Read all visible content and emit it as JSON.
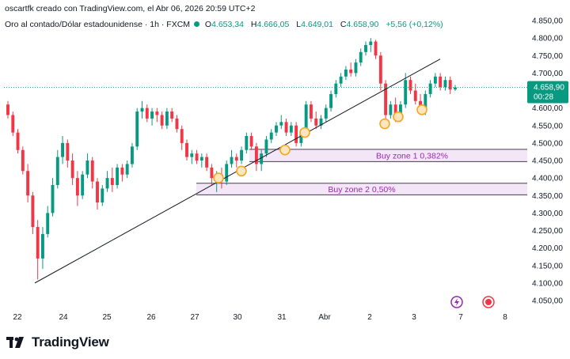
{
  "header": {
    "text": "oscartfk creado con TradingView.com, el Abr 06, 2026 20:59 UTC+2"
  },
  "legend": {
    "symbol": "Oro al contado/Dólar estadounidense · 1h · FXCM",
    "o_label": "O",
    "o_value": "4.653,34",
    "h_label": "H",
    "h_value": "4.666,05",
    "l_label": "L",
    "l_value": "4.649,01",
    "c_label": "C",
    "c_value": "4.658,90",
    "change": "+5,56 (+0,12%)"
  },
  "price_badge": {
    "price": "4.658,90",
    "countdown": "00:28"
  },
  "brand": {
    "name": "TradingView"
  },
  "colors": {
    "up": "#089981",
    "down": "#f23645",
    "trendline": "#131722",
    "zone_fill": "#f3e6f7",
    "zone_border": "#4a3a52",
    "zone_text": "#9c27b0",
    "marker": "#f5a623",
    "price_line": "#26a69a"
  },
  "chart_data": {
    "type": "candlestick",
    "y_ticks": [
      "4.850,00",
      "4.800,00",
      "4.750,00",
      "4.700,00",
      "4.650,00",
      "4.600,00",
      "4.550,00",
      "4.500,00",
      "4.450,00",
      "4.400,00",
      "4.350,00",
      "4.300,00",
      "4.250,00",
      "4.200,00",
      "4.150,00",
      "4.100,00",
      "4.050,00"
    ],
    "y_tick_values": [
      4850,
      4800,
      4750,
      4700,
      4650,
      4600,
      4550,
      4500,
      4450,
      4400,
      4350,
      4300,
      4250,
      4200,
      4150,
      4100,
      4050
    ],
    "x_ticks": [
      "22",
      "24",
      "25",
      "26",
      "27",
      "30",
      "31",
      "Abr",
      "2",
      "3",
      "7",
      "8"
    ],
    "ylim": [
      4020,
      4875
    ],
    "ohlc_path": [
      [
        4610,
        4620,
        4570,
        4580
      ],
      [
        4580,
        4590,
        4520,
        4530
      ],
      [
        4530,
        4540,
        4470,
        4480
      ],
      [
        4480,
        4490,
        4410,
        4420
      ],
      [
        4420,
        4440,
        4330,
        4350
      ],
      [
        4350,
        4360,
        4240,
        4260
      ],
      [
        4260,
        4280,
        4110,
        4170
      ],
      [
        4170,
        4260,
        4140,
        4240
      ],
      [
        4240,
        4320,
        4230,
        4300
      ],
      [
        4300,
        4400,
        4290,
        4380
      ],
      [
        4380,
        4480,
        4370,
        4460
      ],
      [
        4460,
        4520,
        4440,
        4500
      ],
      [
        4500,
        4510,
        4430,
        4450
      ],
      [
        4450,
        4470,
        4380,
        4400
      ],
      [
        4400,
        4420,
        4320,
        4350
      ],
      [
        4350,
        4420,
        4340,
        4410
      ],
      [
        4410,
        4470,
        4400,
        4450
      ],
      [
        4450,
        4460,
        4370,
        4390
      ],
      [
        4390,
        4400,
        4310,
        4330
      ],
      [
        4330,
        4380,
        4320,
        4370
      ],
      [
        4370,
        4420,
        4360,
        4400
      ],
      [
        4400,
        4430,
        4360,
        4380
      ],
      [
        4380,
        4440,
        4370,
        4430
      ],
      [
        4430,
        4440,
        4390,
        4410
      ],
      [
        4410,
        4450,
        4400,
        4440
      ],
      [
        4440,
        4500,
        4430,
        4490
      ],
      [
        4490,
        4600,
        4480,
        4590
      ],
      [
        4590,
        4620,
        4570,
        4600
      ],
      [
        4600,
        4610,
        4560,
        4570
      ],
      [
        4570,
        4600,
        4550,
        4590
      ],
      [
        4590,
        4600,
        4560,
        4580
      ],
      [
        4580,
        4590,
        4540,
        4550
      ],
      [
        4550,
        4600,
        4540,
        4590
      ],
      [
        4590,
        4600,
        4560,
        4570
      ],
      [
        4570,
        4580,
        4530,
        4540
      ],
      [
        4540,
        4550,
        4480,
        4500
      ],
      [
        4500,
        4510,
        4450,
        4460
      ],
      [
        4460,
        4480,
        4440,
        4470
      ],
      [
        4470,
        4480,
        4440,
        4450
      ],
      [
        4450,
        4470,
        4430,
        4460
      ],
      [
        4460,
        4470,
        4420,
        4430
      ],
      [
        4430,
        4440,
        4380,
        4400
      ],
      [
        4400,
        4420,
        4360,
        4410
      ],
      [
        4410,
        4430,
        4370,
        4390
      ],
      [
        4390,
        4450,
        4380,
        4440
      ],
      [
        4440,
        4480,
        4430,
        4460
      ],
      [
        4460,
        4470,
        4430,
        4450
      ],
      [
        4450,
        4490,
        4440,
        4480
      ],
      [
        4480,
        4530,
        4470,
        4520
      ],
      [
        4520,
        4530,
        4480,
        4490
      ],
      [
        4490,
        4500,
        4420,
        4440
      ],
      [
        4440,
        4480,
        4420,
        4470
      ],
      [
        4470,
        4520,
        4460,
        4510
      ],
      [
        4510,
        4540,
        4500,
        4530
      ],
      [
        4530,
        4560,
        4520,
        4550
      ],
      [
        4550,
        4580,
        4540,
        4560
      ],
      [
        4560,
        4570,
        4520,
        4530
      ],
      [
        4530,
        4560,
        4520,
        4550
      ],
      [
        4550,
        4560,
        4490,
        4500
      ],
      [
        4500,
        4540,
        4490,
        4530
      ],
      [
        4530,
        4620,
        4520,
        4610
      ],
      [
        4610,
        4620,
        4560,
        4570
      ],
      [
        4570,
        4590,
        4540,
        4550
      ],
      [
        4550,
        4580,
        4540,
        4570
      ],
      [
        4570,
        4610,
        4560,
        4600
      ],
      [
        4600,
        4650,
        4590,
        4640
      ],
      [
        4640,
        4680,
        4630,
        4670
      ],
      [
        4670,
        4700,
        4660,
        4690
      ],
      [
        4690,
        4720,
        4680,
        4710
      ],
      [
        4710,
        4730,
        4690,
        4700
      ],
      [
        4700,
        4740,
        4690,
        4730
      ],
      [
        4730,
        4770,
        4720,
        4760
      ],
      [
        4760,
        4790,
        4750,
        4780
      ],
      [
        4780,
        4800,
        4760,
        4790
      ],
      [
        4790,
        4795,
        4740,
        4750
      ],
      [
        4750,
        4760,
        4650,
        4670
      ],
      [
        4670,
        4680,
        4560,
        4580
      ],
      [
        4580,
        4620,
        4570,
        4610
      ],
      [
        4610,
        4630,
        4560,
        4570
      ],
      [
        4570,
        4620,
        4560,
        4610
      ],
      [
        4610,
        4700,
        4600,
        4680
      ],
      [
        4680,
        4690,
        4640,
        4650
      ],
      [
        4650,
        4670,
        4610,
        4620
      ],
      [
        4620,
        4640,
        4580,
        4590
      ],
      [
        4590,
        4650,
        4580,
        4640
      ],
      [
        4640,
        4680,
        4630,
        4670
      ],
      [
        4670,
        4700,
        4660,
        4690
      ],
      [
        4690,
        4700,
        4650,
        4660
      ],
      [
        4660,
        4690,
        4650,
        4680
      ],
      [
        4680,
        4690,
        4640,
        4653
      ],
      [
        4653.34,
        4666.05,
        4649.01,
        4658.9
      ]
    ],
    "trendline": {
      "start": [
        4100,
        "22"
      ],
      "end": [
        4740,
        "Abr-3"
      ]
    },
    "zones": [
      {
        "label": "Buy zone 1 0,382%",
        "top": 4482,
        "bottom": 4447
      },
      {
        "label": "Buy zone 2 0,50%",
        "top": 4385,
        "bottom": 4352
      }
    ],
    "marker_values": [
      4400,
      4420,
      4480,
      4530,
      4555,
      4575,
      4595
    ]
  }
}
